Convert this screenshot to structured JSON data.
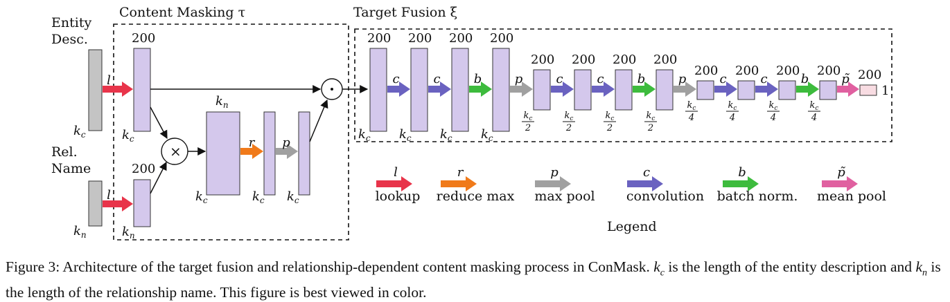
{
  "sections": {
    "masking": "Content Masking τ",
    "fusion": "Target Fusion ξ"
  },
  "inputs": {
    "entity_line1": "Entity",
    "entity_line2": "Desc.",
    "relation_line1": "Rel.",
    "relation_line2": "Name"
  },
  "dims": {
    "d200": "200",
    "kc": "kc",
    "kn": "kn",
    "one": "1",
    "kc_over_2": "kc/2",
    "kc_over_4": "kc/4"
  },
  "legend": {
    "title": "Legend",
    "items": [
      {
        "symbol": "l",
        "label": "lookup",
        "color": "#e8344a"
      },
      {
        "symbol": "r",
        "label": "reduce max",
        "color": "#f07a1a"
      },
      {
        "symbol": "p",
        "label": "max pool",
        "color": "#a0a0a0"
      },
      {
        "symbol": "c",
        "label": "convolution",
        "color": "#6a62c0"
      },
      {
        "symbol": "b",
        "label": "batch norm.",
        "color": "#3dbb3d"
      },
      {
        "symbol": "p̃",
        "label": "mean pool",
        "color": "#e060a0"
      }
    ]
  },
  "ops": {
    "multiply": "×",
    "hadamard": "⊙"
  },
  "colors": {
    "block_fill": "#d4c8ec",
    "input_fill": "#c4c4c4",
    "output_fill": "#f8dce2"
  },
  "caption": {
    "lead": "Figure 3: Architecture of the target fusion and relationship-dependent content masking process in ConMask.",
    "kc_sym": "k",
    "kc_sub": "c",
    "mid1": "is the length of the entity description and",
    "kn_sym": "k",
    "kn_sub": "n",
    "mid2": "is the length of the relationship name. This figure is best viewed in color."
  }
}
